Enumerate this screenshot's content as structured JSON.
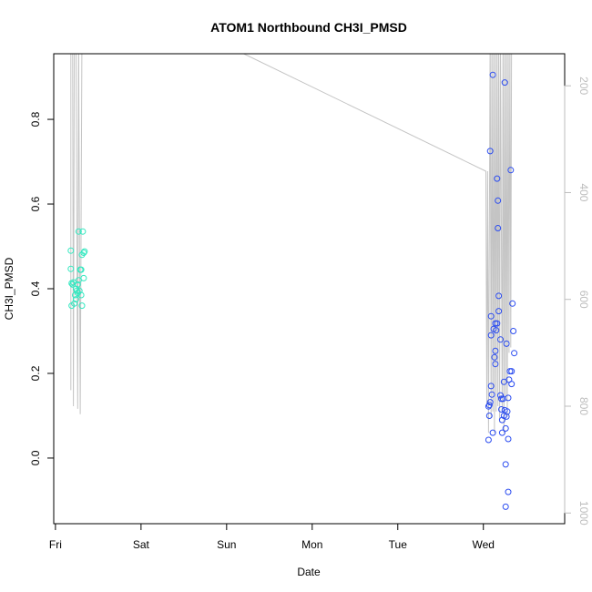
{
  "chart_data": {
    "type": "scatter",
    "title": "ATOM1 Northbound CH3I_PMSD",
    "xlabel": "Date",
    "ylabel": "CH3I_PMSD",
    "xlim": [
      -0.02,
      5.95
    ],
    "ylim": [
      -0.155,
      0.955
    ],
    "x_ticks": [
      {
        "value": 0,
        "label": "Fri"
      },
      {
        "value": 1,
        "label": "Sat"
      },
      {
        "value": 2,
        "label": "Sun"
      },
      {
        "value": 3,
        "label": "Mon"
      },
      {
        "value": 4,
        "label": "Tue"
      },
      {
        "value": 5,
        "label": "Wed"
      }
    ],
    "y_ticks": [
      0.0,
      0.2,
      0.4,
      0.6,
      0.8
    ],
    "y_tick_labels": [
      "0.0",
      "0.2",
      "0.4",
      "0.6",
      "0.8"
    ],
    "y2_axis": {
      "color": "#bdbdbd",
      "range": [
        1020,
        140
      ],
      "ticks": [
        200,
        400,
        600,
        800,
        1000
      ],
      "tick_labels": [
        "200",
        "400",
        "600",
        "800",
        "1000"
      ]
    },
    "grid": false,
    "legend": "none",
    "series": [
      {
        "color": "#33e8c0",
        "marker": "open-circle",
        "points": [
          [
            0.18,
            0.49
          ],
          [
            0.18,
            0.447
          ],
          [
            0.19,
            0.413
          ],
          [
            0.2,
            0.41
          ],
          [
            0.21,
            0.415
          ],
          [
            0.19,
            0.36
          ],
          [
            0.22,
            0.365
          ],
          [
            0.23,
            0.385
          ],
          [
            0.24,
            0.4
          ],
          [
            0.25,
            0.395
          ],
          [
            0.26,
            0.41
          ],
          [
            0.27,
            0.42
          ],
          [
            0.24,
            0.375
          ],
          [
            0.26,
            0.39
          ],
          [
            0.28,
            0.395
          ],
          [
            0.29,
            0.445
          ],
          [
            0.3,
            0.445
          ],
          [
            0.31,
            0.48
          ],
          [
            0.27,
            0.535
          ],
          [
            0.32,
            0.535
          ],
          [
            0.31,
            0.36
          ],
          [
            0.33,
            0.485
          ],
          [
            0.34,
            0.488
          ],
          [
            0.33,
            0.425
          ],
          [
            0.3,
            0.385
          ]
        ]
      },
      {
        "color": "#2b4cf0",
        "marker": "open-circle",
        "points": [
          [
            5.11,
            0.905
          ],
          [
            5.08,
            0.725
          ],
          [
            5.25,
            0.887
          ],
          [
            5.32,
            0.68
          ],
          [
            5.16,
            0.66
          ],
          [
            5.17,
            0.608
          ],
          [
            5.17,
            0.543
          ],
          [
            5.18,
            0.383
          ],
          [
            5.34,
            0.365
          ],
          [
            5.09,
            0.335
          ],
          [
            5.18,
            0.347
          ],
          [
            5.14,
            0.318
          ],
          [
            5.16,
            0.318
          ],
          [
            5.12,
            0.305
          ],
          [
            5.15,
            0.302
          ],
          [
            5.35,
            0.3
          ],
          [
            5.09,
            0.29
          ],
          [
            5.2,
            0.28
          ],
          [
            5.27,
            0.27
          ],
          [
            5.14,
            0.253
          ],
          [
            5.36,
            0.248
          ],
          [
            5.13,
            0.238
          ],
          [
            5.14,
            0.222
          ],
          [
            5.31,
            0.205
          ],
          [
            5.33,
            0.205
          ],
          [
            5.3,
            0.185
          ],
          [
            5.24,
            0.18
          ],
          [
            5.33,
            0.175
          ],
          [
            5.09,
            0.17
          ],
          [
            5.2,
            0.148
          ],
          [
            5.1,
            0.15
          ],
          [
            5.21,
            0.14
          ],
          [
            5.23,
            0.14
          ],
          [
            5.29,
            0.142
          ],
          [
            5.08,
            0.132
          ],
          [
            5.07,
            0.125
          ],
          [
            5.06,
            0.122
          ],
          [
            5.21,
            0.115
          ],
          [
            5.25,
            0.113
          ],
          [
            5.28,
            0.11
          ],
          [
            5.07,
            0.1
          ],
          [
            5.24,
            0.1
          ],
          [
            5.27,
            0.098
          ],
          [
            5.22,
            0.09
          ],
          [
            5.26,
            0.07
          ],
          [
            5.11,
            0.06
          ],
          [
            5.22,
            0.06
          ],
          [
            5.06,
            0.043
          ],
          [
            5.29,
            0.045
          ],
          [
            5.26,
            -0.015
          ],
          [
            5.29,
            -0.08
          ],
          [
            5.26,
            -0.115
          ]
        ]
      }
    ]
  }
}
